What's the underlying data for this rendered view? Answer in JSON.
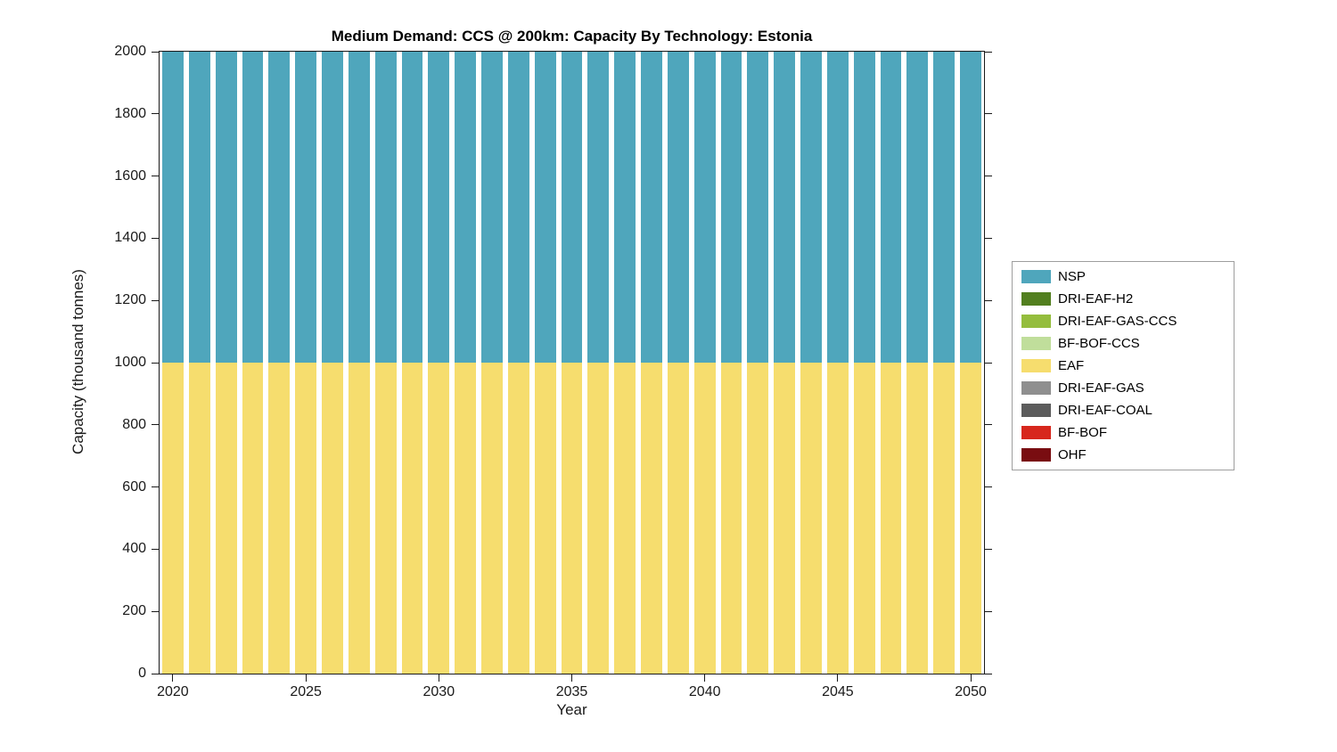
{
  "chart_data": {
    "type": "bar",
    "stacked": true,
    "title": "Medium Demand: CCS @ 200km: Capacity By Technology: Estonia",
    "xlabel": "Year",
    "ylabel": "Capacity (thousand tonnes)",
    "x": [
      2020,
      2021,
      2022,
      2023,
      2024,
      2025,
      2026,
      2027,
      2028,
      2029,
      2030,
      2031,
      2032,
      2033,
      2034,
      2035,
      2036,
      2037,
      2038,
      2039,
      2040,
      2041,
      2042,
      2043,
      2044,
      2045,
      2046,
      2047,
      2048,
      2049,
      2050
    ],
    "series": [
      {
        "name": "EAF",
        "color": "#F6DD6E",
        "values": [
          1000,
          1000,
          1000,
          1000,
          1000,
          1000,
          1000,
          1000,
          1000,
          1000,
          1000,
          1000,
          1000,
          1000,
          1000,
          1000,
          1000,
          1000,
          1000,
          1000,
          1000,
          1000,
          1000,
          1000,
          1000,
          1000,
          1000,
          1000,
          1000,
          1000,
          1000
        ]
      },
      {
        "name": "NSP",
        "color": "#4FA6BC",
        "values": [
          1000,
          1000,
          1000,
          1000,
          1000,
          1000,
          1000,
          1000,
          1000,
          1000,
          1000,
          1000,
          1000,
          1000,
          1000,
          1000,
          1000,
          1000,
          1000,
          1000,
          1000,
          1000,
          1000,
          1000,
          1000,
          1000,
          1000,
          1000,
          1000,
          1000,
          1000
        ]
      }
    ],
    "legend": [
      {
        "label": "NSP",
        "color": "#4FA6BC"
      },
      {
        "label": "DRI-EAF-H2",
        "color": "#527F1F"
      },
      {
        "label": "DRI-EAF-GAS-CCS",
        "color": "#94BD3D"
      },
      {
        "label": "BF-BOF-CCS",
        "color": "#C0DE9B"
      },
      {
        "label": "EAF",
        "color": "#F6DD6E"
      },
      {
        "label": "DRI-EAF-GAS",
        "color": "#8F8F8F"
      },
      {
        "label": "DRI-EAF-COAL",
        "color": "#5C5C5C"
      },
      {
        "label": "BF-BOF",
        "color": "#D7271D"
      },
      {
        "label": "OHF",
        "color": "#790D11"
      }
    ],
    "legend_position": "right",
    "grid": false,
    "xlim": [
      2019.5,
      2050.5
    ],
    "ylim": [
      0,
      2000
    ],
    "bar_width": 0.8,
    "x_ticks": [
      2020,
      2025,
      2030,
      2035,
      2040,
      2045,
      2050
    ],
    "y_ticks": [
      0,
      200,
      400,
      600,
      800,
      1000,
      1200,
      1400,
      1600,
      1800,
      2000
    ]
  }
}
